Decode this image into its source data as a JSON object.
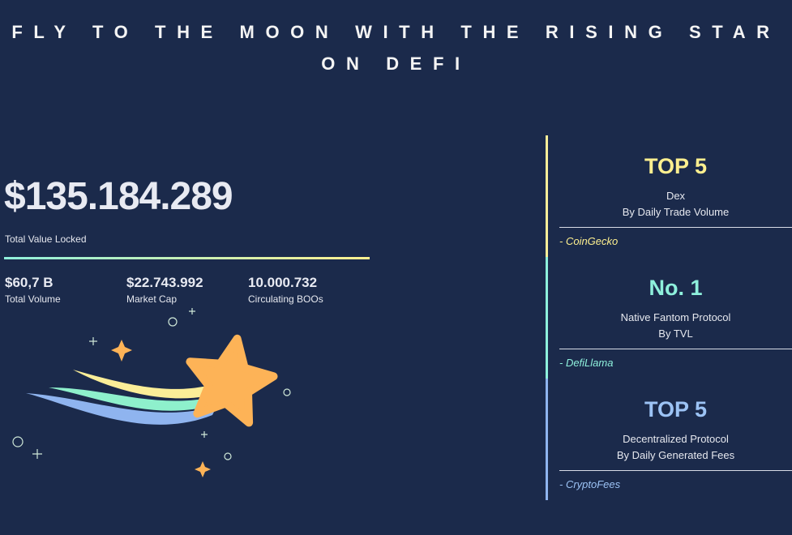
{
  "header": {
    "title_line1": "FLY TO THE MOON WITH THE RISING STAR",
    "title_line2": "ON DEFI"
  },
  "tvl": {
    "value": "$135.184.289",
    "label": "Total Value Locked"
  },
  "stats": [
    {
      "value": "$60,7 B",
      "label": "Total Volume"
    },
    {
      "value": "$22.743.992",
      "label": "Market Cap"
    },
    {
      "value": "10.000.732",
      "label": "Circulating BOOs"
    }
  ],
  "rankings": [
    {
      "rank": "TOP 5",
      "line1": "Dex",
      "line2": "By Daily Trade Volume",
      "source": "- CoinGecko"
    },
    {
      "rank": "No. 1",
      "line1": "Native Fantom Protocol",
      "line2": "By TVL",
      "source": "- DefiLlama"
    },
    {
      "rank": "TOP 5",
      "line1": "Decentralized Protocol",
      "line2": "By Daily Generated Fees",
      "source": "- CryptoFees"
    }
  ]
}
